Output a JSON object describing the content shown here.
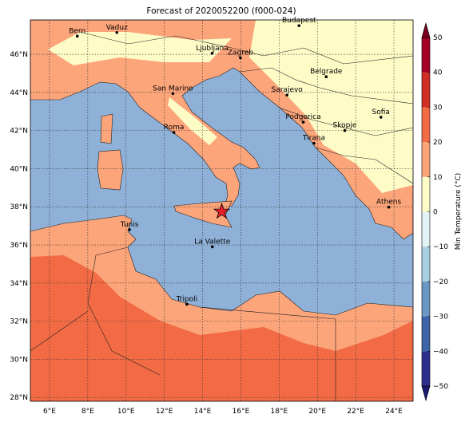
{
  "title": "Forecast of 2020052200 (f000-024)",
  "map": {
    "xlim": [
      5,
      25
    ],
    "ylim": [
      27.8,
      47.8
    ],
    "xticks": [
      {
        "value": 6,
        "label": "6°E"
      },
      {
        "value": 8,
        "label": "8°E"
      },
      {
        "value": 10,
        "label": "10°E"
      },
      {
        "value": 12,
        "label": "12°E"
      },
      {
        "value": 14,
        "label": "14°E"
      },
      {
        "value": 16,
        "label": "16°E"
      },
      {
        "value": 18,
        "label": "18°E"
      },
      {
        "value": 20,
        "label": "20°E"
      },
      {
        "value": 22,
        "label": "22°E"
      },
      {
        "value": 24,
        "label": "24°E"
      }
    ],
    "yticks": [
      {
        "value": 28,
        "label": "28°N"
      },
      {
        "value": 30,
        "label": "30°N"
      },
      {
        "value": 32,
        "label": "32°N"
      },
      {
        "value": 34,
        "label": "34°N"
      },
      {
        "value": 36,
        "label": "36°N"
      },
      {
        "value": 38,
        "label": "38°N"
      },
      {
        "value": 40,
        "label": "40°N"
      },
      {
        "value": 42,
        "label": "42°N"
      },
      {
        "value": 44,
        "label": "44°N"
      },
      {
        "value": 46,
        "label": "46°N"
      }
    ],
    "cities": [
      {
        "name": "Bern",
        "lon": 7.45,
        "lat": 46.95
      },
      {
        "name": "Vaduz",
        "lon": 9.52,
        "lat": 47.14
      },
      {
        "name": "Budapest",
        "lon": 19.04,
        "lat": 47.5
      },
      {
        "name": "Ljubljana",
        "lon": 14.5,
        "lat": 46.05
      },
      {
        "name": "Zagreb",
        "lon": 15.98,
        "lat": 45.81
      },
      {
        "name": "Belgrade",
        "lon": 20.46,
        "lat": 44.82
      },
      {
        "name": "Sarajevo",
        "lon": 18.41,
        "lat": 43.86
      },
      {
        "name": "San Marino",
        "lon": 12.45,
        "lat": 43.94
      },
      {
        "name": "Podgorica",
        "lon": 19.26,
        "lat": 42.44
      },
      {
        "name": "Skopje",
        "lon": 21.43,
        "lat": 42.0
      },
      {
        "name": "Sofia",
        "lon": 23.32,
        "lat": 42.7
      },
      {
        "name": "Roma",
        "lon": 12.5,
        "lat": 41.9
      },
      {
        "name": "Tirana",
        "lon": 19.82,
        "lat": 41.33
      },
      {
        "name": "Athens",
        "lon": 23.73,
        "lat": 37.98
      },
      {
        "name": "Tunis",
        "lon": 10.18,
        "lat": 36.8
      },
      {
        "name": "La Valette",
        "lon": 14.51,
        "lat": 35.9
      },
      {
        "name": "Tripoli",
        "lon": 13.18,
        "lat": 32.89
      }
    ],
    "marker": {
      "lon": 15.0,
      "lat": 37.75,
      "color": "#e8202a"
    }
  },
  "colorbar": {
    "label": "Min Temperature (°C)",
    "lim": [
      -50,
      50
    ],
    "ticks": [
      {
        "value": -50,
        "label": "−50"
      },
      {
        "value": -40,
        "label": "−40"
      },
      {
        "value": -30,
        "label": "−30"
      },
      {
        "value": -20,
        "label": "−20"
      },
      {
        "value": -10,
        "label": "−10"
      },
      0,
      10,
      20,
      30,
      40,
      50
    ],
    "colors": [
      "#2c2f8e",
      "#3d63a8",
      "#6a97c4",
      "#a9cfe4",
      "#e2f3f6",
      "#fdfbc6",
      "#fca47a",
      "#f26b44",
      "#d12e26",
      "#a50026"
    ],
    "extend_colors": [
      "#1a1a70",
      "#7a0020"
    ]
  }
}
